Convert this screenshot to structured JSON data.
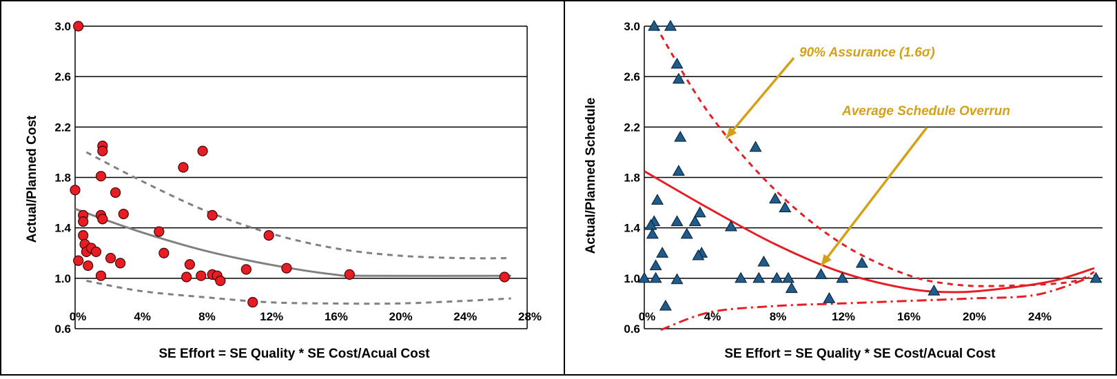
{
  "colors": {
    "cost_point": "#e51e25",
    "schedule_point": "#1f5c8b",
    "cost_trend": "#808080",
    "schedule_trend": "#e51e25",
    "annotation": "#d4a017"
  },
  "chart_data": [
    {
      "type": "scatter",
      "panel": "left",
      "xlabel": "SE Effort = SE Quality * SE Cost/Acual Cost",
      "ylabel": "Actual/Planned Cost",
      "xlim": [
        0,
        0.28
      ],
      "ylim": [
        0.6,
        3.0
      ],
      "x_ticks": [
        0,
        0.04,
        0.08,
        0.12,
        0.16,
        0.2,
        0.24,
        0.28
      ],
      "x_tick_labels": [
        "0%",
        "4%",
        "8%",
        "12%",
        "16%",
        "20%",
        "24%",
        "28%"
      ],
      "y_ticks": [
        0.6,
        1.0,
        1.4,
        1.8,
        2.2,
        2.6,
        3.0
      ],
      "y_tick_labels": [
        "0.6",
        "1.0",
        "1.4",
        "1.8",
        "2.2",
        "2.6",
        "3.0"
      ],
      "grid": "horizontal",
      "marker": "circle",
      "points": [
        [
          0.002,
          3.0
        ],
        [
          0.0,
          1.7
        ],
        [
          0.002,
          1.14
        ],
        [
          0.005,
          1.5
        ],
        [
          0.005,
          1.45
        ],
        [
          0.005,
          1.34
        ],
        [
          0.006,
          1.27
        ],
        [
          0.007,
          1.21
        ],
        [
          0.008,
          1.1
        ],
        [
          0.01,
          1.24
        ],
        [
          0.013,
          1.21
        ],
        [
          0.016,
          1.81
        ],
        [
          0.016,
          1.5
        ],
        [
          0.016,
          1.02
        ],
        [
          0.017,
          2.05
        ],
        [
          0.017,
          2.01
        ],
        [
          0.017,
          1.47
        ],
        [
          0.022,
          1.16
        ],
        [
          0.025,
          1.68
        ],
        [
          0.028,
          1.12
        ],
        [
          0.03,
          1.51
        ],
        [
          0.052,
          1.37
        ],
        [
          0.055,
          1.2
        ],
        [
          0.067,
          1.88
        ],
        [
          0.069,
          1.01
        ],
        [
          0.071,
          1.11
        ],
        [
          0.078,
          1.02
        ],
        [
          0.079,
          2.01
        ],
        [
          0.085,
          1.5
        ],
        [
          0.085,
          1.03
        ],
        [
          0.088,
          1.02
        ],
        [
          0.09,
          0.98
        ],
        [
          0.106,
          1.07
        ],
        [
          0.11,
          0.81
        ],
        [
          0.12,
          1.34
        ],
        [
          0.131,
          1.08
        ],
        [
          0.17,
          1.03
        ],
        [
          0.266,
          1.01
        ]
      ],
      "curves": [
        {
          "style": "solid",
          "points": [
            [
              0.0,
              1.55
            ],
            [
              0.04,
              1.37
            ],
            [
              0.08,
              1.22
            ],
            [
              0.12,
              1.11
            ],
            [
              0.16,
              1.03
            ],
            [
              0.18,
              1.02
            ],
            [
              0.27,
              1.02
            ]
          ]
        },
        {
          "style": "dashed",
          "points": [
            [
              0.007,
              2.0
            ],
            [
              0.04,
              1.78
            ],
            [
              0.08,
              1.54
            ],
            [
              0.12,
              1.36
            ],
            [
              0.16,
              1.24
            ],
            [
              0.2,
              1.18
            ],
            [
              0.24,
              1.16
            ],
            [
              0.27,
              1.16
            ]
          ]
        },
        {
          "style": "dashed",
          "points": [
            [
              0.007,
              0.98
            ],
            [
              0.04,
              0.9
            ],
            [
              0.08,
              0.85
            ],
            [
              0.12,
              0.81
            ],
            [
              0.16,
              0.8
            ],
            [
              0.2,
              0.8
            ],
            [
              0.24,
              0.82
            ],
            [
              0.27,
              0.84
            ]
          ]
        }
      ]
    },
    {
      "type": "scatter",
      "panel": "right",
      "xlabel": "SE Effort = SE Quality * SE Cost/Acual Cost",
      "ylabel": "Actual/Planned Schedule",
      "xlim": [
        0,
        0.28
      ],
      "ylim": [
        0.6,
        3.0
      ],
      "x_ticks": [
        0,
        0.04,
        0.08,
        0.12,
        0.16,
        0.2,
        0.24
      ],
      "x_tick_labels": [
        "0%",
        "4%",
        "8%",
        "12%",
        "16%",
        "20%",
        "24%"
      ],
      "y_ticks": [
        0.6,
        1.0,
        1.4,
        1.8,
        2.2,
        2.6,
        3.0
      ],
      "y_tick_labels": [
        "0.6",
        "1.0",
        "1.4",
        "1.8",
        "2.2",
        "2.6",
        "3.0"
      ],
      "grid": "horizontal",
      "marker": "triangle",
      "points": [
        [
          0.006,
          3.0
        ],
        [
          0.016,
          3.0
        ],
        [
          0.02,
          2.7
        ],
        [
          0.021,
          2.58
        ],
        [
          0.022,
          2.12
        ],
        [
          0.021,
          1.85
        ],
        [
          0.008,
          1.62
        ],
        [
          0.006,
          1.45
        ],
        [
          0.004,
          1.42
        ],
        [
          0.005,
          1.35
        ],
        [
          0.011,
          1.2
        ],
        [
          0.007,
          1.1
        ],
        [
          0.0,
          1.0
        ],
        [
          0.007,
          1.0
        ],
        [
          0.013,
          0.78
        ],
        [
          0.02,
          1.45
        ],
        [
          0.02,
          0.99
        ],
        [
          0.026,
          1.35
        ],
        [
          0.031,
          1.45
        ],
        [
          0.034,
          1.52
        ],
        [
          0.035,
          1.2
        ],
        [
          0.033,
          1.18
        ],
        [
          0.053,
          1.41
        ],
        [
          0.059,
          1.0
        ],
        [
          0.068,
          2.04
        ],
        [
          0.07,
          1.0
        ],
        [
          0.073,
          1.13
        ],
        [
          0.08,
          1.63
        ],
        [
          0.081,
          1.0
        ],
        [
          0.086,
          1.56
        ],
        [
          0.088,
          1.0
        ],
        [
          0.09,
          0.92
        ],
        [
          0.108,
          1.03
        ],
        [
          0.113,
          0.84
        ],
        [
          0.121,
          1.0
        ],
        [
          0.133,
          1.12
        ],
        [
          0.177,
          0.9
        ],
        [
          0.276,
          1.0
        ]
      ],
      "curves": [
        {
          "style": "solid",
          "points": [
            [
              0.0,
              1.85
            ],
            [
              0.04,
              1.55
            ],
            [
              0.08,
              1.27
            ],
            [
              0.12,
              1.05
            ],
            [
              0.16,
              0.92
            ],
            [
              0.19,
              0.89
            ],
            [
              0.22,
              0.92
            ],
            [
              0.25,
              0.98
            ],
            [
              0.275,
              1.08
            ]
          ]
        },
        {
          "style": "dashed",
          "points": [
            [
              0.007,
              3.0
            ],
            [
              0.04,
              2.3
            ],
            [
              0.08,
              1.7
            ],
            [
              0.12,
              1.28
            ],
            [
              0.16,
              1.03
            ],
            [
              0.19,
              0.95
            ],
            [
              0.22,
              0.94
            ],
            [
              0.26,
              0.97
            ],
            [
              0.275,
              1.05
            ]
          ]
        },
        {
          "style": "dashdot",
          "points": [
            [
              0.01,
              0.59
            ],
            [
              0.04,
              0.73
            ],
            [
              0.08,
              0.78
            ],
            [
              0.12,
              0.8
            ],
            [
              0.16,
              0.82
            ],
            [
              0.2,
              0.84
            ],
            [
              0.24,
              0.87
            ],
            [
              0.275,
              1.02
            ]
          ]
        }
      ],
      "annotations": [
        {
          "text": "90% Assurance (1.6σ)",
          "arrow_to": [
            0.05,
            2.11
          ]
        },
        {
          "text": "Average Schedule Overrun",
          "arrow_to": [
            0.108,
            1.1
          ]
        }
      ]
    }
  ]
}
